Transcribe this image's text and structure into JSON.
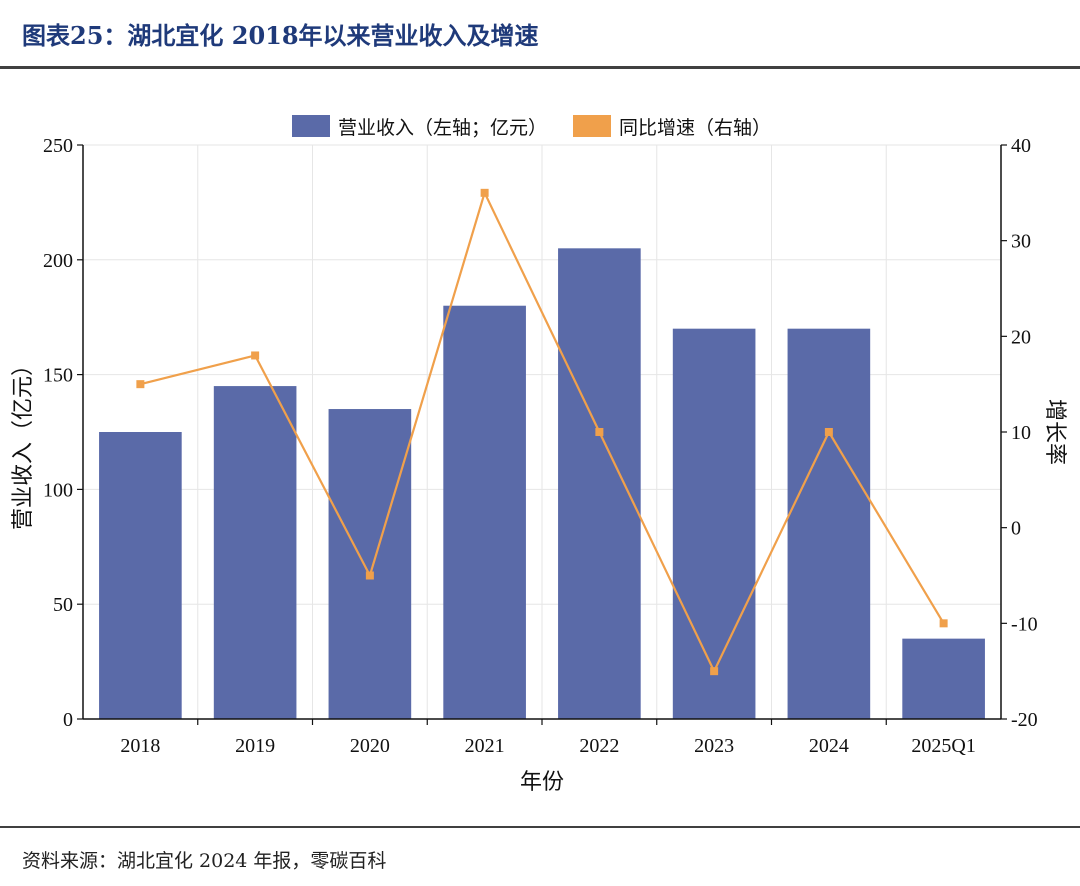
{
  "header": {
    "title": "图表25：湖北宜化 2018年以来营业收入及增速"
  },
  "footer": {
    "source": "资料来源：湖北宜化 2024 年报，零碳百科"
  },
  "colors": {
    "bar": "#5a6aa8",
    "line": "#f0a04b",
    "title": "#1f3a7a",
    "grid": "#e6e6e6"
  },
  "chart_data": {
    "type": "bar",
    "categories": [
      "2018",
      "2019",
      "2020",
      "2021",
      "2022",
      "2023",
      "2024",
      "2025Q1"
    ],
    "series": [
      {
        "name": "营业收入（左轴；亿元）",
        "type": "bar",
        "axis": "left",
        "values": [
          125,
          145,
          135,
          180,
          205,
          170,
          170,
          35
        ]
      },
      {
        "name": "同比增速（右轴）",
        "type": "line",
        "axis": "right",
        "values": [
          15,
          18,
          -5,
          35,
          10,
          -15,
          10,
          -10
        ]
      }
    ],
    "xlabel": "年份",
    "ylabel": "营业收入（亿元）",
    "y2label": "增长率",
    "ylim": [
      0,
      250
    ],
    "yticks": [
      0,
      50,
      100,
      150,
      200,
      250
    ],
    "y2lim": [
      -20,
      40
    ],
    "y2ticks": [
      -20,
      -10,
      0,
      10,
      20,
      30,
      40
    ],
    "grid": true,
    "legend": "top-center"
  }
}
